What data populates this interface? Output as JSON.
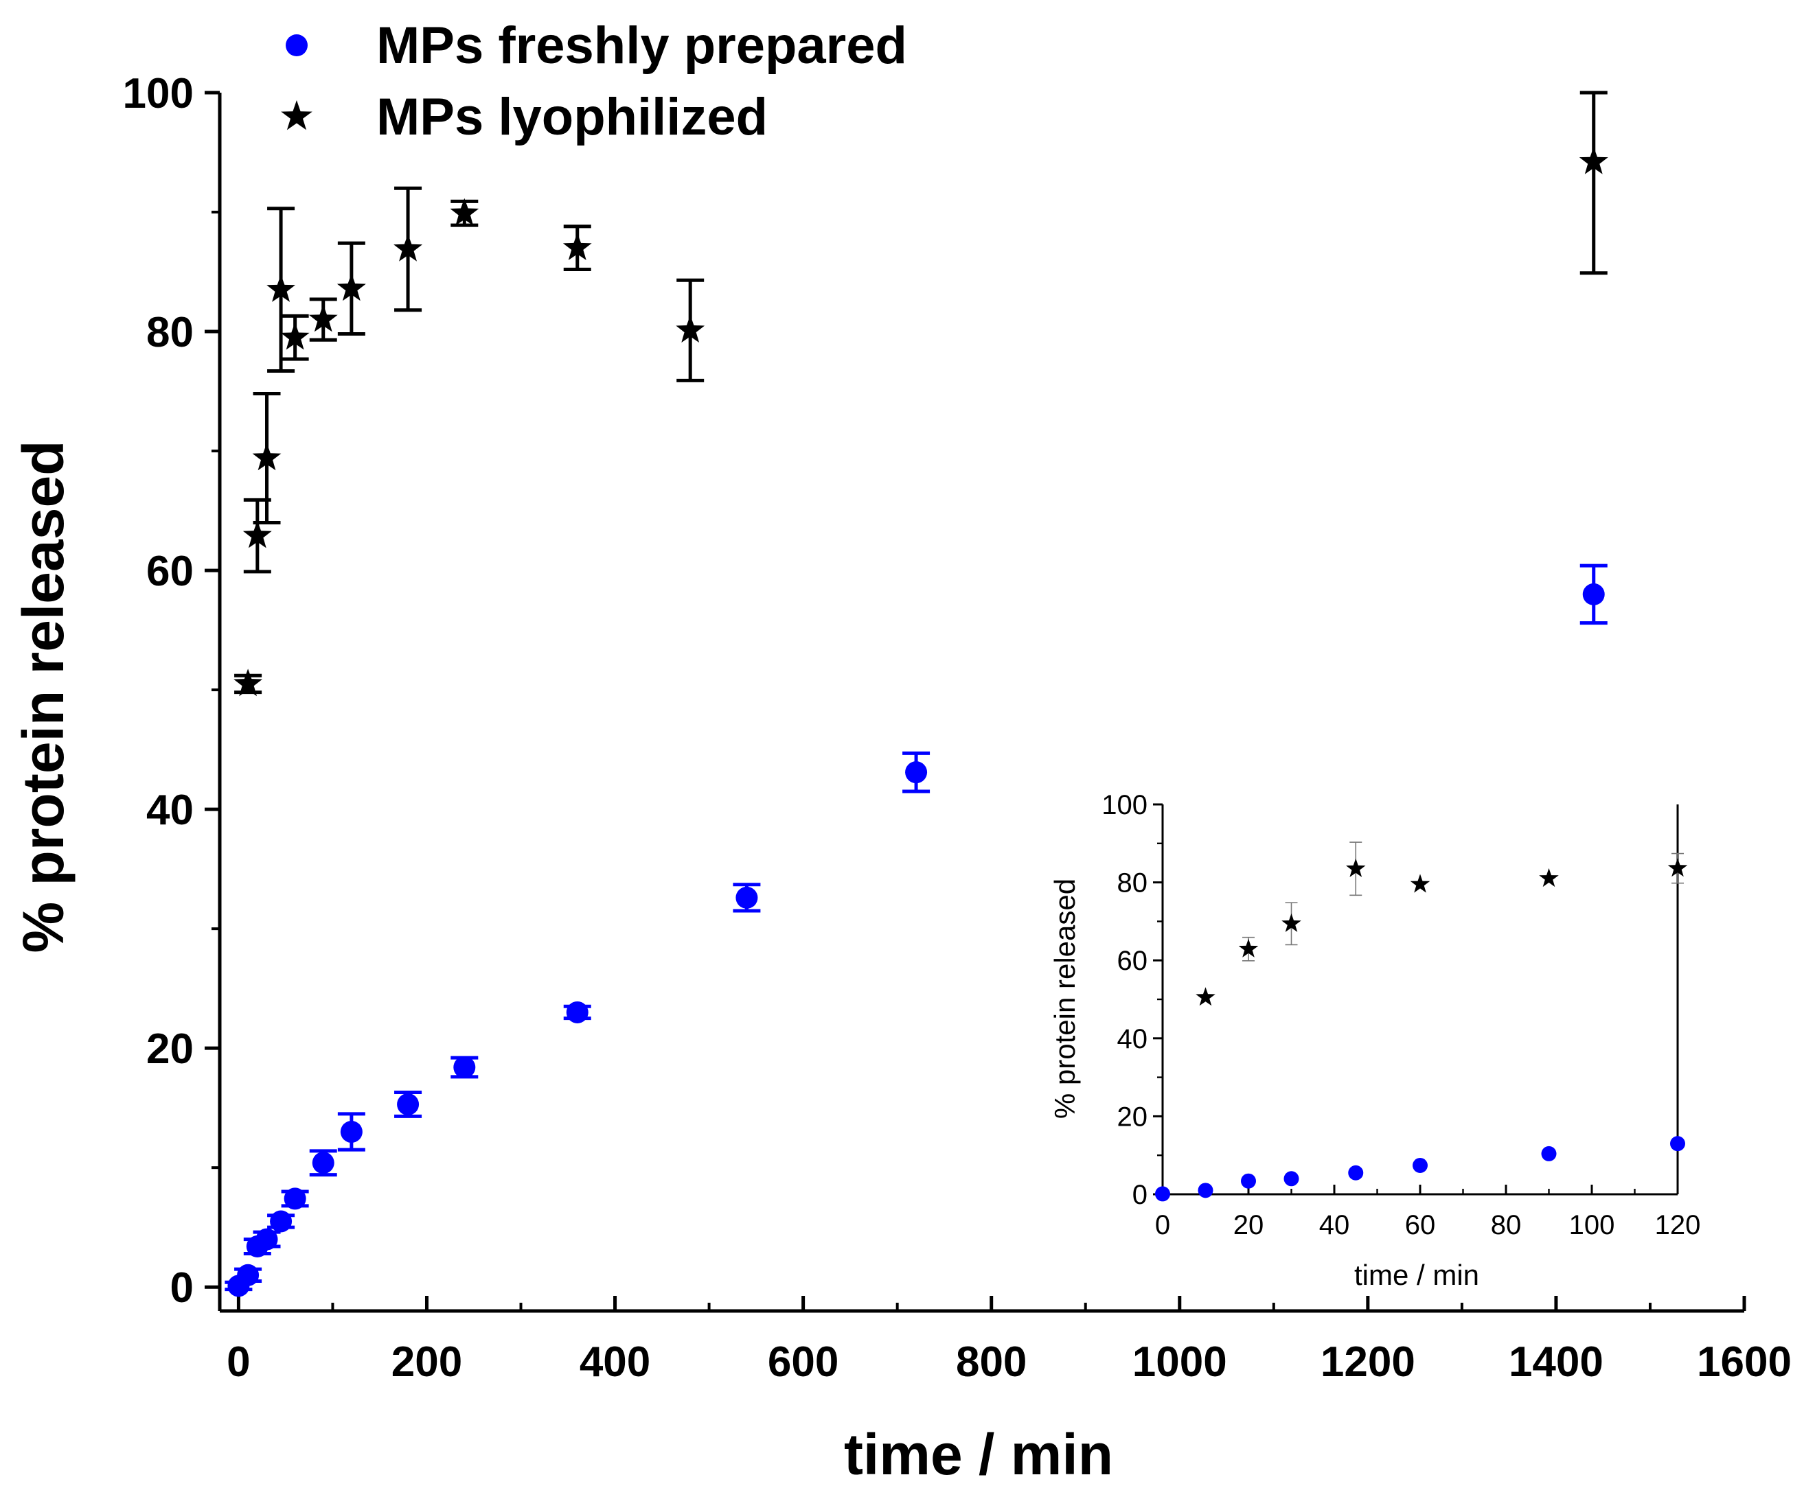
{
  "chart_data": [
    {
      "id": "main",
      "type": "scatter",
      "title": "",
      "xlabel": "time / min",
      "ylabel": "% protein released",
      "xlim": [
        -20,
        1600
      ],
      "ylim": [
        -2,
        100
      ],
      "xticks": [
        0,
        200,
        400,
        600,
        800,
        1000,
        1200,
        1400,
        1600
      ],
      "yticks": [
        0,
        20,
        40,
        60,
        80,
        100
      ],
      "grid": false,
      "legend": "top-left outside",
      "series": [
        {
          "name": "MPs freshly prepared",
          "marker": "circle",
          "color": "#0000ff",
          "points": [
            {
              "x": 0,
              "y": 0.1,
              "err": 0.3
            },
            {
              "x": 10,
              "y": 1.0,
              "err": 0.5
            },
            {
              "x": 20,
              "y": 3.4,
              "err": 0.6
            },
            {
              "x": 30,
              "y": 4.0,
              "err": 0.6
            },
            {
              "x": 45,
              "y": 5.5,
              "err": 0.5
            },
            {
              "x": 60,
              "y": 7.4,
              "err": 0.6
            },
            {
              "x": 90,
              "y": 10.4,
              "err": 1.0
            },
            {
              "x": 120,
              "y": 13.0,
              "err": 1.5
            },
            {
              "x": 180,
              "y": 15.3,
              "err": 1.0
            },
            {
              "x": 240,
              "y": 18.4,
              "err": 0.8
            },
            {
              "x": 360,
              "y": 23.0,
              "err": 0.5
            },
            {
              "x": 540,
              "y": 32.6,
              "err": 1.1
            },
            {
              "x": 720,
              "y": 43.1,
              "err": 1.6
            },
            {
              "x": 1440,
              "y": 58.0,
              "err": 2.4
            }
          ]
        },
        {
          "name": "MPs lyophilized",
          "marker": "star",
          "color": "#000000",
          "points": [
            {
              "x": 10,
              "y": 50.5,
              "err": 0.7
            },
            {
              "x": 20,
              "y": 62.9,
              "err": 3.0
            },
            {
              "x": 30,
              "y": 69.4,
              "err": 5.4
            },
            {
              "x": 45,
              "y": 83.5,
              "err": 6.8
            },
            {
              "x": 60,
              "y": 79.5,
              "err": 1.8
            },
            {
              "x": 90,
              "y": 81.0,
              "err": 1.7
            },
            {
              "x": 120,
              "y": 83.6,
              "err": 3.8
            },
            {
              "x": 180,
              "y": 86.9,
              "err": 5.1
            },
            {
              "x": 240,
              "y": 89.9,
              "err": 1.0
            },
            {
              "x": 360,
              "y": 87.0,
              "err": 1.8
            },
            {
              "x": 480,
              "y": 80.1,
              "err": 4.2
            },
            {
              "x": 1440,
              "y": 94.2,
              "err": 9.3
            }
          ]
        }
      ]
    },
    {
      "id": "inset",
      "type": "scatter",
      "title": "",
      "xlabel": "time / min",
      "ylabel": "% protein released",
      "xlim": [
        0,
        120
      ],
      "ylim": [
        0,
        100
      ],
      "xticks": [
        0,
        20,
        40,
        60,
        80,
        100,
        120
      ],
      "yticks": [
        0,
        20,
        40,
        60,
        80,
        100
      ],
      "grid": false,
      "series": [
        {
          "name": "MPs freshly prepared",
          "marker": "circle",
          "color": "#0000ff",
          "points": [
            {
              "x": 0,
              "y": 0.1,
              "err": 0
            },
            {
              "x": 10,
              "y": 1.0,
              "err": 0
            },
            {
              "x": 20,
              "y": 3.4,
              "err": 0
            },
            {
              "x": 30,
              "y": 4.0,
              "err": 0
            },
            {
              "x": 45,
              "y": 5.5,
              "err": 0
            },
            {
              "x": 60,
              "y": 7.4,
              "err": 0
            },
            {
              "x": 90,
              "y": 10.4,
              "err": 0
            },
            {
              "x": 120,
              "y": 13.0,
              "err": 0
            }
          ]
        },
        {
          "name": "MPs lyophilized",
          "marker": "star",
          "color": "#000000",
          "points": [
            {
              "x": 10,
              "y": 50.5,
              "err": 0
            },
            {
              "x": 20,
              "y": 62.9,
              "err": 3.0
            },
            {
              "x": 30,
              "y": 69.4,
              "err": 5.4
            },
            {
              "x": 45,
              "y": 83.5,
              "err": 6.8
            },
            {
              "x": 60,
              "y": 79.5,
              "err": 0
            },
            {
              "x": 90,
              "y": 81.0,
              "err": 0
            },
            {
              "x": 120,
              "y": 83.6,
              "err": 3.8
            }
          ]
        }
      ]
    }
  ]
}
